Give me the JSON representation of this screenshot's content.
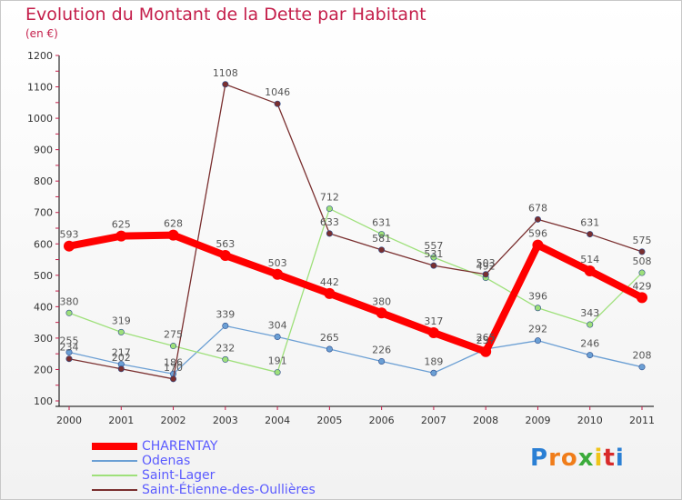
{
  "title": "Evolution du Montant de la Dette par Habitant",
  "subtitle": "(en €)",
  "logo": {
    "letters": [
      "P",
      "r",
      "o",
      "x",
      "i",
      "t",
      "i"
    ],
    "colors": [
      "#2a7fd4",
      "#f07d1a",
      "#f07d1a",
      "#3bab3b",
      "#f0c419",
      "#d82a2a",
      "#2a7fd4"
    ]
  },
  "chart_data": {
    "type": "line",
    "title": "Evolution du Montant de la Dette par Habitant",
    "ylabel": "(en €)",
    "xlabel": "",
    "x": [
      "2000",
      "2001",
      "2002",
      "2003",
      "2004",
      "2005",
      "2006",
      "2007",
      "2008",
      "2009",
      "2010",
      "2011"
    ],
    "ylim": [
      100,
      1200
    ],
    "yticks": [
      "100",
      "200",
      "300",
      "400",
      "500",
      "600",
      "700",
      "800",
      "900",
      "1000",
      "1100",
      "1200"
    ],
    "grid": false,
    "legend_position": "bottom-left",
    "series": [
      {
        "name": "CHARENTAY",
        "color": "#ff0000",
        "values": [
          593,
          625,
          628,
          563,
          503,
          442,
          380,
          317,
          257,
          596,
          514,
          429
        ]
      },
      {
        "name": "Odenas",
        "color": "#6b9fd4",
        "values": [
          255,
          217,
          186,
          339,
          304,
          265,
          226,
          189,
          265,
          292,
          246,
          208
        ]
      },
      {
        "name": "Saint-Lager",
        "color": "#9ee07a",
        "values": [
          380,
          319,
          275,
          232,
          191,
          712,
          631,
          557,
          492,
          396,
          343,
          508
        ]
      },
      {
        "name": "Saint-Étienne-des-Oullières",
        "color": "#7a2f2f",
        "values": [
          234,
          202,
          170,
          1108,
          1046,
          633,
          581,
          531,
          503,
          678,
          631,
          575
        ]
      }
    ]
  }
}
